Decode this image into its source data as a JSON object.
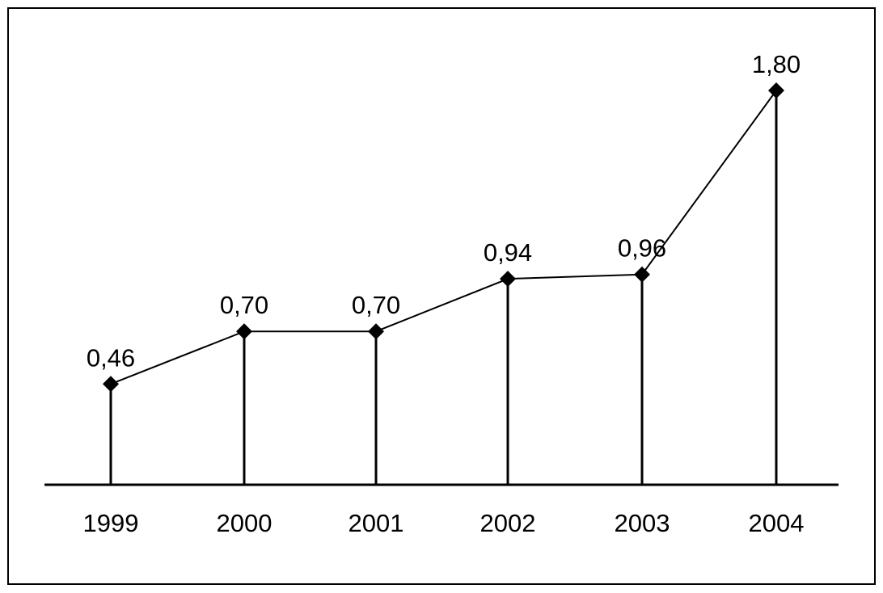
{
  "chart_data": {
    "type": "line",
    "title": "",
    "xlabel": "",
    "ylabel": "",
    "categories": [
      "1999",
      "2000",
      "2001",
      "2002",
      "2003",
      "2004"
    ],
    "values": [
      0.46,
      0.7,
      0.7,
      0.94,
      0.96,
      1.8
    ],
    "value_labels": [
      "0,46",
      "0,70",
      "0,70",
      "0,94",
      "0,96",
      "1,80"
    ],
    "ylim": [
      0,
      1.9
    ],
    "grid": false,
    "legend": "none",
    "marker": "diamond",
    "drop_lines": true,
    "y_axis_visible": false,
    "colors": {
      "line": "#000000",
      "marker": "#000000",
      "background": "#ffffff"
    }
  }
}
